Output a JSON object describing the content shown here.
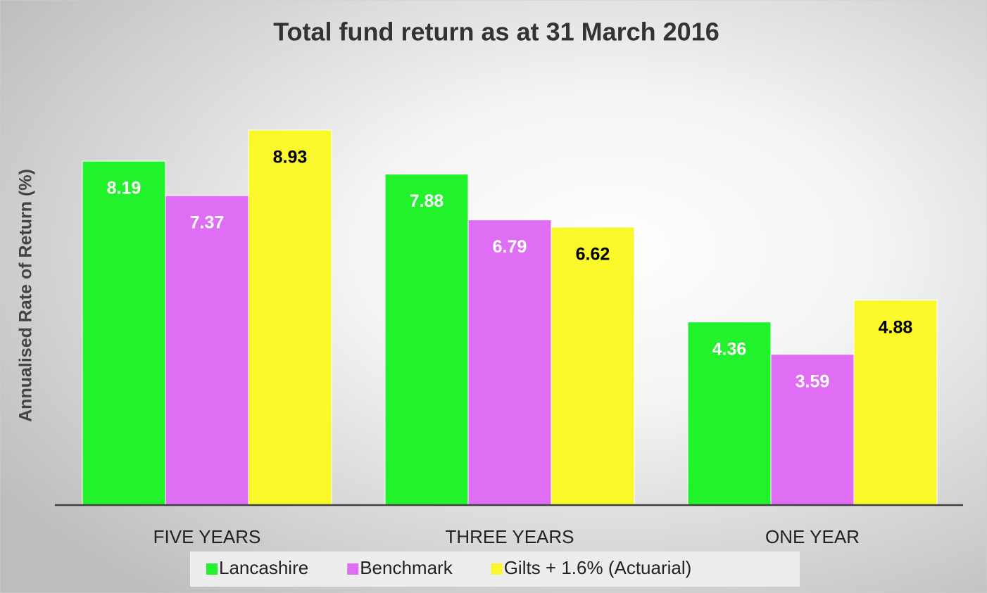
{
  "chart_data": {
    "type": "bar",
    "title": "Total fund return as at 31 March 2016",
    "ylabel": "Annualised Rate of Return (%)",
    "categories": [
      "FIVE YEARS",
      "THREE YEARS",
      "ONE YEAR"
    ],
    "series": [
      {
        "name": "Lancashire",
        "color": "#22f22c",
        "label_color": "#ffffff",
        "values": [
          8.19,
          7.88,
          4.36
        ]
      },
      {
        "name": "Benchmark",
        "color": "#e06ef4",
        "label_color": "#ffffff",
        "values": [
          7.37,
          6.79,
          3.59
        ]
      },
      {
        "name": "Gilts + 1.6% (Actuarial)",
        "color": "#faf72a",
        "label_color": "#000000",
        "values": [
          8.93,
          6.62,
          4.88
        ]
      }
    ],
    "ylim": [
      0,
      10
    ],
    "legend": "bottom"
  }
}
